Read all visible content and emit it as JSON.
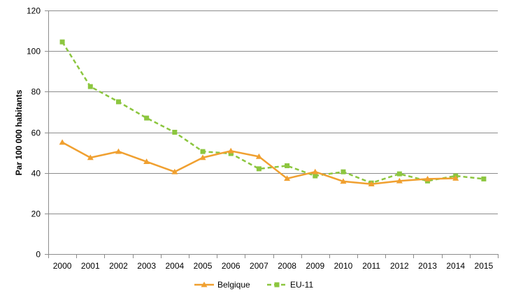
{
  "chart_data": {
    "type": "line",
    "title": "",
    "xlabel": "",
    "ylabel": "Par 100 000 habitants",
    "x": [
      "2000",
      "2001",
      "2002",
      "2003",
      "2004",
      "2005",
      "2006",
      "2007",
      "2008",
      "2009",
      "2010",
      "2011",
      "2012",
      "2013",
      "2014",
      "2015"
    ],
    "ylim": [
      0,
      120
    ],
    "yticks": [
      0,
      20,
      40,
      60,
      80,
      100,
      120
    ],
    "grid": "horizontal",
    "legend_position": "bottom",
    "series": [
      {
        "name": "Belgique",
        "color": "#F0A030",
        "line_style": "solid",
        "marker": "triangle",
        "values": [
          55,
          47.5,
          50.5,
          45.5,
          40.5,
          47.5,
          50.8,
          48,
          37.2,
          40.5,
          35.8,
          34.5,
          36,
          37,
          37.3,
          null
        ]
      },
      {
        "name": "EU-11",
        "color": "#8CC63F",
        "line_style": "dashed",
        "marker": "square",
        "values": [
          104.5,
          82.5,
          75,
          67,
          60,
          50.5,
          49.5,
          42,
          43.5,
          38.5,
          40.5,
          35,
          39.5,
          36,
          38.5,
          37
        ]
      }
    ]
  }
}
